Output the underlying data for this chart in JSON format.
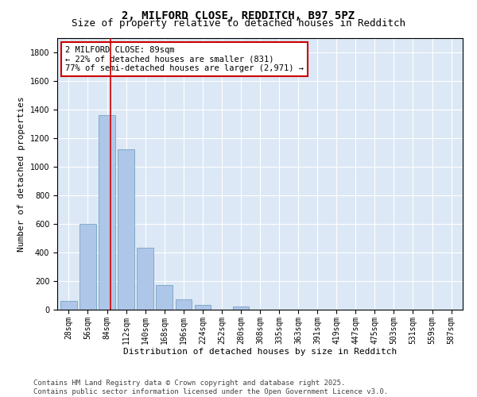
{
  "title1": "2, MILFORD CLOSE, REDDITCH, B97 5PZ",
  "title2": "Size of property relative to detached houses in Redditch",
  "xlabel": "Distribution of detached houses by size in Redditch",
  "ylabel": "Number of detached properties",
  "categories": [
    "28sqm",
    "56sqm",
    "84sqm",
    "112sqm",
    "140sqm",
    "168sqm",
    "196sqm",
    "224sqm",
    "252sqm",
    "280sqm",
    "308sqm",
    "335sqm",
    "363sqm",
    "391sqm",
    "419sqm",
    "447sqm",
    "475sqm",
    "503sqm",
    "531sqm",
    "559sqm",
    "587sqm"
  ],
  "values": [
    60,
    600,
    1360,
    1120,
    430,
    170,
    70,
    35,
    0,
    20,
    0,
    0,
    0,
    0,
    0,
    0,
    0,
    0,
    0,
    0,
    0
  ],
  "bar_color": "#aec6e8",
  "bar_edge_color": "#6699bb",
  "vline_color": "#cc0000",
  "annotation_text": "2 MILFORD CLOSE: 89sqm\n← 22% of detached houses are smaller (831)\n77% of semi-detached houses are larger (2,971) →",
  "annotation_box_color": "#ffffff",
  "annotation_box_edge": "#cc0000",
  "ylim": [
    0,
    1900
  ],
  "yticks": [
    0,
    200,
    400,
    600,
    800,
    1000,
    1200,
    1400,
    1600,
    1800
  ],
  "bg_color": "#dce8f5",
  "footer": "Contains HM Land Registry data © Crown copyright and database right 2025.\nContains public sector information licensed under the Open Government Licence v3.0.",
  "title1_fontsize": 10,
  "title2_fontsize": 9,
  "xlabel_fontsize": 8,
  "ylabel_fontsize": 8,
  "tick_fontsize": 7,
  "annotation_fontsize": 7.5,
  "footer_fontsize": 6.5
}
